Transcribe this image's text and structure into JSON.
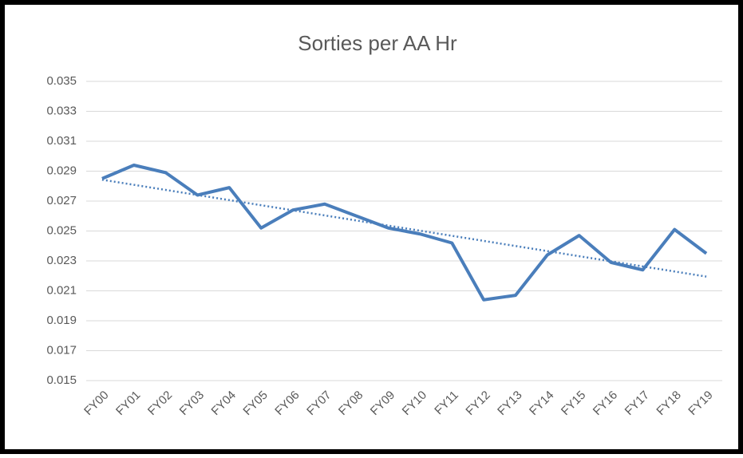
{
  "chart_data": {
    "type": "line",
    "title": "Sorties per AA Hr",
    "categories": [
      "FY00",
      "FY01",
      "FY02",
      "FY03",
      "FY04",
      "FY05",
      "FY06",
      "FY07",
      "FY08",
      "FY09",
      "FY10",
      "FY11",
      "FY12",
      "FY13",
      "FY14",
      "FY15",
      "FY16",
      "FY17",
      "FY18",
      "FY19"
    ],
    "series": [
      {
        "color": "#4a7ebb",
        "values": [
          0.0285,
          0.0294,
          0.0289,
          0.0274,
          0.0279,
          0.0252,
          0.0264,
          0.0268,
          0.026,
          0.0252,
          0.0248,
          0.0242,
          0.0204,
          0.0207,
          0.0234,
          0.0247,
          0.0229,
          0.0224,
          0.0251,
          0.0235
        ]
      }
    ],
    "trendline": "linear",
    "ylim": [
      0.015,
      0.035
    ],
    "yticks": [
      0.015,
      0.017,
      0.019,
      0.021,
      0.023,
      0.025,
      0.027,
      0.029,
      0.031,
      0.033,
      0.035
    ],
    "grid": true
  }
}
